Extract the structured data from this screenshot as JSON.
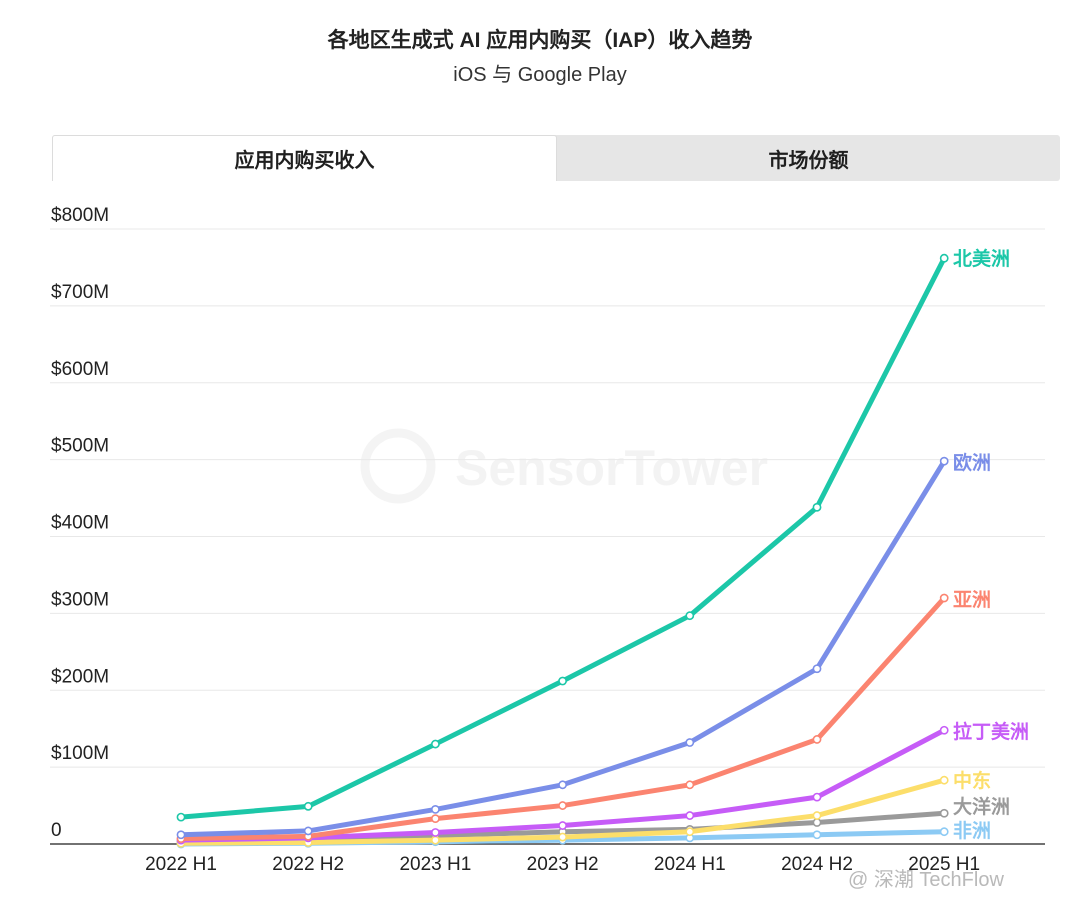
{
  "header": {
    "title": "各地区生成式 AI 应用内购买（IAP）收入趋势",
    "subtitle": "iOS 与 Google Play"
  },
  "tabs": [
    {
      "label": "应用内购买收入",
      "active": true
    },
    {
      "label": "市场份额",
      "active": false
    }
  ],
  "watermarks": {
    "brand": "SensorTower",
    "corner": "@ 深潮 TechFlow"
  },
  "chart_data": {
    "type": "line",
    "title": "各地区生成式 AI 应用内购买（IAP）收入趋势",
    "subtitle": "iOS 与 Google Play",
    "xlabel": "",
    "ylabel": "",
    "categories": [
      "2022 H1",
      "2022 H2",
      "2023 H1",
      "2023 H2",
      "2024 H1",
      "2024 H2",
      "2025 H1"
    ],
    "ylim": [
      0,
      800
    ],
    "y_ticks": [
      0,
      100,
      200,
      300,
      400,
      500,
      600,
      700,
      800
    ],
    "y_tick_labels": [
      "0",
      "$100M",
      "$200M",
      "$300M",
      "$400M",
      "$500M",
      "$600M",
      "$700M",
      "$800M"
    ],
    "grid": true,
    "legend": "inline labels at line ends",
    "series": [
      {
        "name": "北美洲",
        "color": "#1cc7a8",
        "values": [
          35,
          49,
          130,
          212,
          297,
          438,
          762
        ]
      },
      {
        "name": "欧洲",
        "color": "#7a8ee8",
        "values": [
          12,
          17,
          45,
          77,
          132,
          228,
          498
        ]
      },
      {
        "name": "亚洲",
        "color": "#fb8470",
        "values": [
          7,
          10,
          33,
          50,
          77,
          136,
          320
        ]
      },
      {
        "name": "拉丁美洲",
        "color": "#c65cf7",
        "values": [
          5,
          8,
          15,
          24,
          37,
          61,
          148
        ]
      },
      {
        "name": "中东",
        "color": "#fcde6a",
        "values": [
          1,
          2,
          5,
          9,
          16,
          37,
          83
        ]
      },
      {
        "name": "大洋洲",
        "color": "#9a9a9a",
        "values": [
          3,
          6,
          11,
          16,
          19,
          28,
          40
        ]
      },
      {
        "name": "非洲",
        "color": "#8ccaf4",
        "values": [
          0,
          1,
          3,
          5,
          8,
          12,
          16
        ]
      }
    ]
  }
}
